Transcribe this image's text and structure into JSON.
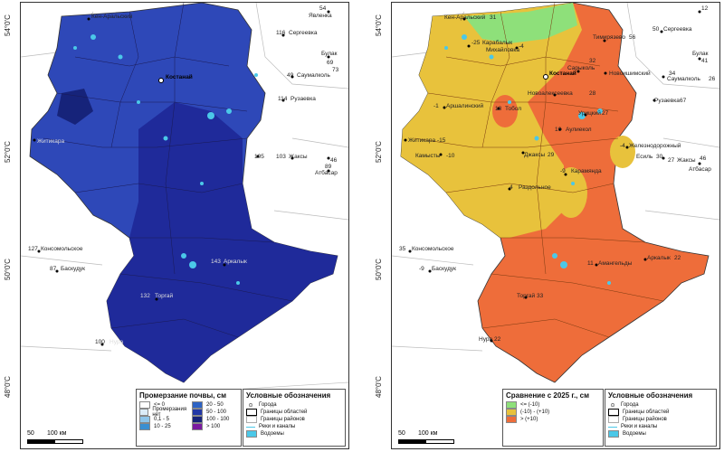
{
  "latitudes": [
    "54°0'C",
    "52°0'C",
    "50°0'C",
    "48°0'C"
  ],
  "left_map": {
    "legend_title": "Промерзание почвы, см",
    "classes": [
      {
        "label": "<= 0",
        "color": "#ffffff"
      },
      {
        "label": "Промерзания нет",
        "color": "#dcecf7"
      },
      {
        "label": "0,1 - 5",
        "color": "#8ec5ea"
      },
      {
        "label": "10 - 25",
        "color": "#3a8fd1"
      },
      {
        "label": "20 - 50",
        "color": "#2e63c4"
      },
      {
        "label": "50 - 100",
        "color": "#2238a6"
      },
      {
        "label": "100 - 100",
        "color": "#16237a"
      },
      {
        "label": "> 100",
        "color": "#7a1aa0"
      }
    ],
    "places": [
      {
        "name": "Кен-Аральский"
      },
      {
        "name": "Явленка",
        "value": "54"
      },
      {
        "name": "Сергеевка",
        "value": "116"
      },
      {
        "name": "Саумалколь",
        "value": "49"
      },
      {
        "name": "Рузаевка",
        "value": "114"
      },
      {
        "name": "Булак",
        "value": "69"
      },
      {
        "name": "73"
      },
      {
        "name": "Костанай"
      },
      {
        "name": "Житикара"
      },
      {
        "name": "Есиль",
        "value": "105"
      },
      {
        "name": "Жаксы",
        "value": "103"
      },
      {
        "name": "Атбасар",
        "value": "89"
      },
      {
        "name": "46"
      },
      {
        "name": "Консомольское",
        "value": "127"
      },
      {
        "name": "Баскудук",
        "value": "87"
      },
      {
        "name": "Нура",
        "value": "100"
      },
      {
        "name": "Торгай",
        "value": "132"
      },
      {
        "name": "Аркалык",
        "value": "143"
      }
    ]
  },
  "right_map": {
    "legend_title": "Сравнение с 2025 г., см",
    "classes": [
      {
        "label": "<= (-10)",
        "color": "#8ee07a"
      },
      {
        "label": "(-10) - (+10)",
        "color": "#e8c23c"
      },
      {
        "label": "> (+10)",
        "color": "#ee6d3a"
      }
    ],
    "places": [
      {
        "name": "Кен-Аральский",
        "value": "31"
      },
      {
        "name": "Карабалык",
        "value": "-25"
      },
      {
        "name": "Михайловка",
        "value": "-4"
      },
      {
        "name": "Тимирязево",
        "value": "56"
      },
      {
        "name": "Сергеевка",
        "value": "50"
      },
      {
        "name": "Явленка",
        "value": "12"
      },
      {
        "name": "Булак",
        "value": "41"
      },
      {
        "name": "Сарыколь",
        "value": "32"
      },
      {
        "name": "Новоишимский",
        "value": "34"
      },
      {
        "name": "Саумалколь",
        "value": "26"
      },
      {
        "name": "Костанай"
      },
      {
        "name": "Есиль",
        "value": "30"
      },
      {
        "name": "Новоалексеевка",
        "value": "28"
      },
      {
        "name": "Рузаевка",
        "value": "67"
      },
      {
        "name": "Аршалинский",
        "value": "-1"
      },
      {
        "name": "Тобол",
        "value": "18"
      },
      {
        "name": "Урицкий",
        "value": "27"
      },
      {
        "name": "Аулиекол",
        "value": "16"
      },
      {
        "name": "Житикара",
        "value": "-15"
      },
      {
        "name": "Камысты",
        "value": "-10"
      },
      {
        "name": "Джаксы",
        "value": "29"
      },
      {
        "name": "Жаксы",
        "value": "27"
      },
      {
        "name": "Железнодорожный",
        "value": "-4"
      },
      {
        "name": "Атбасар",
        "value": "46"
      },
      {
        "name": "Карамянда",
        "value": "-9"
      },
      {
        "name": "Раздольное",
        "value": "4"
      },
      {
        "name": "Консомольское",
        "value": "35"
      },
      {
        "name": "Баскудук",
        "value": "-9"
      },
      {
        "name": "Амангельды",
        "value": "11"
      },
      {
        "name": "Аркалык",
        "value": "22"
      },
      {
        "name": "Торгай",
        "value": "33"
      },
      {
        "name": "Нура",
        "value": "22"
      }
    ]
  },
  "conventional": {
    "title": "Условные обозначения",
    "items": [
      "Города",
      "Границы областей",
      "Границы районов",
      "Реки и каналы",
      "Водоемы"
    ]
  },
  "scale": {
    "a": "50",
    "b": "100 км"
  }
}
